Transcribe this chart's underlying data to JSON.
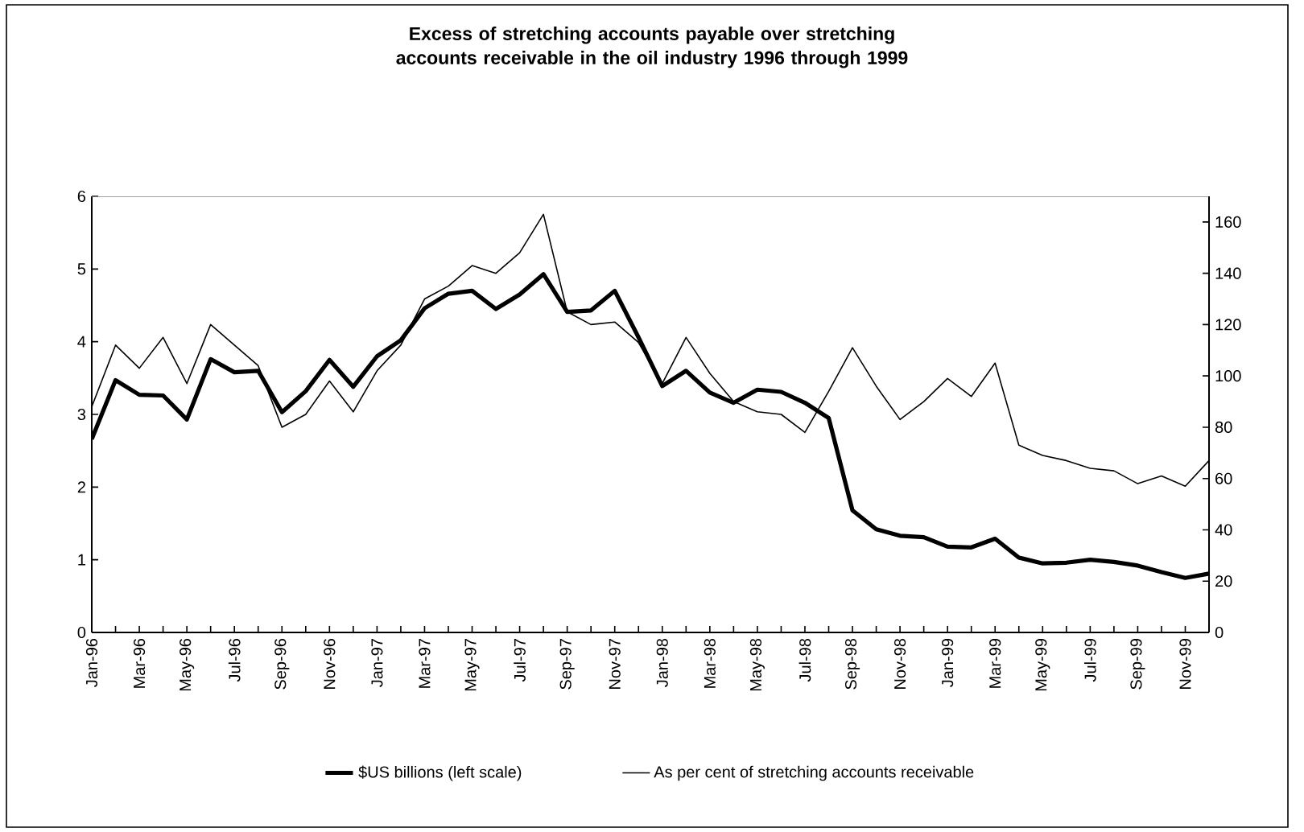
{
  "chart_data": {
    "type": "line",
    "title": "Excess of stretching accounts payable over stretching accounts receivable in the oil industry 1996 through 1999",
    "categories": [
      "Jan-96",
      null,
      "Mar-96",
      null,
      "May-96",
      null,
      "Jul-96",
      null,
      "Sep-96",
      null,
      "Nov-96",
      null,
      "Jan-97",
      null,
      "Mar-97",
      null,
      "May-97",
      null,
      "Jul-97",
      null,
      "Sep-97",
      null,
      "Nov-97",
      null,
      "Jan-98",
      null,
      "Mar-98",
      null,
      "May-98",
      null,
      "Jul-98",
      null,
      "Sep-98",
      null,
      "Nov-98",
      null,
      "Jan-99",
      null,
      "Mar-99",
      null,
      "May-99",
      null,
      "Jul-99",
      null,
      "Sep-99",
      null,
      "Nov-99",
      null
    ],
    "series": [
      {
        "name": "$US billions (left scale)",
        "color": "#000000",
        "values": [
          2.66,
          3.47,
          3.27,
          3.26,
          2.93,
          3.76,
          3.58,
          3.6,
          3.03,
          3.32,
          3.75,
          3.38,
          3.8,
          4.02,
          4.46,
          4.66,
          4.7,
          4.45,
          4.65,
          4.93,
          4.41,
          4.43,
          4.7,
          4.06,
          3.39,
          3.6,
          3.3,
          3.16,
          3.34,
          3.31,
          3.16,
          2.95,
          1.68,
          1.42,
          1.33,
          1.31,
          1.18,
          1.17,
          1.29,
          1.03,
          0.95,
          0.96,
          1.0,
          0.97,
          0.92,
          0.83,
          0.75,
          0.81
        ]
      },
      {
        "name": "As per cent of stretching accounts receivable",
        "color": "#000000",
        "axis": "y2",
        "values": [
          88,
          112,
          103,
          115,
          97,
          120,
          112,
          104,
          80,
          85,
          98,
          86,
          102,
          112,
          130,
          135,
          143,
          140,
          148,
          163,
          125,
          120,
          121,
          113,
          97,
          115,
          101,
          90,
          86,
          85,
          78,
          94,
          111,
          96,
          83,
          90,
          99,
          92,
          105,
          73,
          69,
          67,
          64,
          63,
          58,
          61,
          57,
          67
        ]
      }
    ],
    "ylim": [
      0,
      6
    ],
    "yticks": [
      0,
      1,
      2,
      3,
      4,
      5,
      6
    ],
    "y2lim": [
      0,
      170
    ],
    "y2ticks": [
      0,
      20,
      40,
      60,
      80,
      100,
      120,
      140,
      160
    ],
    "legend": "bottom"
  }
}
